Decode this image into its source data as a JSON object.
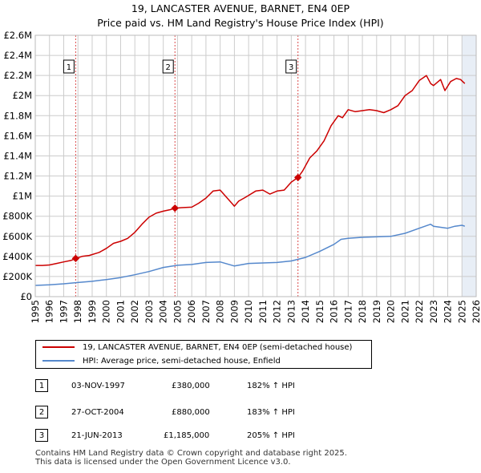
{
  "title_line1": "19, LANCASTER AVENUE, BARNET, EN4 0EP",
  "title_line2": "Price paid vs. HM Land Registry's House Price Index (HPI)",
  "colors": {
    "property": "#cc0000",
    "hpi": "#5588cc",
    "grid": "#cccccc",
    "shade": "#e8eef6"
  },
  "chart_data": {
    "type": "line",
    "title": "19, LANCASTER AVENUE, BARNET, EN4 0EP",
    "subtitle": "Price paid vs. HM Land Registry's House Price Index (HPI)",
    "xlabel": "",
    "ylabel": "",
    "xlim": [
      1995,
      2026
    ],
    "ylim": [
      0,
      2600000
    ],
    "y_ticks": [
      0,
      200000,
      400000,
      600000,
      800000,
      1000000,
      1200000,
      1400000,
      1600000,
      1800000,
      2000000,
      2200000,
      2400000,
      2600000
    ],
    "y_tick_labels": [
      "£0",
      "£200K",
      "£400K",
      "£600K",
      "£800K",
      "£1M",
      "£1.2M",
      "£1.4M",
      "£1.6M",
      "£1.8M",
      "£2M",
      "£2.2M",
      "£2.4M",
      "£2.6M"
    ],
    "x_ticks": [
      1995,
      1996,
      1997,
      1998,
      1999,
      2000,
      2001,
      2002,
      2003,
      2004,
      2005,
      2006,
      2007,
      2008,
      2009,
      2010,
      2011,
      2012,
      2013,
      2014,
      2015,
      2016,
      2017,
      2018,
      2019,
      2020,
      2021,
      2022,
      2023,
      2024,
      2025,
      2026
    ],
    "x_tick_labels": [
      "1995",
      "1996",
      "1997",
      "1998",
      "1999",
      "2000",
      "2001",
      "2002",
      "2003",
      "2004",
      "2005",
      "2006",
      "2007",
      "2008",
      "2009",
      "2010",
      "2011",
      "2012",
      "2013",
      "2014",
      "2015",
      "2016",
      "2017",
      "2018",
      "2019",
      "2020",
      "2021",
      "2022",
      "2023",
      "2024",
      "2025",
      "2026"
    ],
    "grid": true,
    "forecast_from": 2025.0,
    "series": [
      {
        "name": "19, LANCASTER AVENUE, BARNET, EN4 0EP (semi-detached house)",
        "x": [
          1995.0,
          1995.5,
          1996.0,
          1996.5,
          1997.0,
          1997.5,
          1997.84,
          1998.3,
          1998.8,
          1999.5,
          2000.0,
          2000.5,
          2001.0,
          2001.5,
          2002.0,
          2002.5,
          2003.0,
          2003.5,
          2004.0,
          2004.5,
          2004.82,
          2005.3,
          2006.0,
          2006.5,
          2007.0,
          2007.5,
          2008.0,
          2008.5,
          2009.0,
          2009.3,
          2009.8,
          2010.5,
          2011.0,
          2011.5,
          2012.0,
          2012.5,
          2013.0,
          2013.47,
          2013.8,
          2014.3,
          2014.8,
          2015.3,
          2015.8,
          2016.3,
          2016.6,
          2017.0,
          2017.5,
          2018.0,
          2018.5,
          2019.0,
          2019.5,
          2020.0,
          2020.5,
          2021.0,
          2021.5,
          2022.0,
          2022.5,
          2022.8,
          2023.0,
          2023.5,
          2023.8,
          2024.2,
          2024.6,
          2024.9,
          2025.2
        ],
        "y": [
          310000,
          310000,
          315000,
          330000,
          345000,
          360000,
          380000,
          400000,
          410000,
          440000,
          480000,
          530000,
          550000,
          580000,
          640000,
          720000,
          790000,
          830000,
          850000,
          865000,
          880000,
          885000,
          890000,
          930000,
          980000,
          1050000,
          1060000,
          980000,
          900000,
          950000,
          990000,
          1050000,
          1060000,
          1020000,
          1050000,
          1060000,
          1140000,
          1185000,
          1250000,
          1380000,
          1450000,
          1550000,
          1700000,
          1800000,
          1780000,
          1860000,
          1840000,
          1850000,
          1860000,
          1850000,
          1830000,
          1860000,
          1900000,
          2000000,
          2050000,
          2150000,
          2200000,
          2120000,
          2100000,
          2160000,
          2050000,
          2140000,
          2170000,
          2160000,
          2120000
        ]
      },
      {
        "name": "HPI: Average price, semi-detached house, Enfield",
        "x": [
          1995.0,
          1996.0,
          1997.0,
          1998.0,
          1999.0,
          2000.0,
          2001.0,
          2002.0,
          2003.0,
          2004.0,
          2005.0,
          2006.0,
          2007.0,
          2008.0,
          2009.0,
          2010.0,
          2011.0,
          2012.0,
          2013.0,
          2014.0,
          2015.0,
          2016.0,
          2016.5,
          2017.0,
          2018.0,
          2019.0,
          2020.0,
          2021.0,
          2022.0,
          2022.8,
          2023.0,
          2023.5,
          2024.0,
          2024.5,
          2025.0,
          2025.2
        ],
        "y": [
          112000,
          118000,
          128000,
          140000,
          152000,
          170000,
          190000,
          218000,
          250000,
          290000,
          312000,
          320000,
          340000,
          345000,
          305000,
          330000,
          335000,
          340000,
          355000,
          390000,
          450000,
          520000,
          570000,
          580000,
          590000,
          595000,
          600000,
          630000,
          680000,
          720000,
          700000,
          690000,
          680000,
          700000,
          710000,
          700000
        ]
      }
    ],
    "sales": [
      {
        "label": "1",
        "x": 1997.84,
        "price": 380000
      },
      {
        "label": "2",
        "x": 2004.82,
        "price": 880000
      },
      {
        "label": "3",
        "x": 2013.47,
        "price": 1185000
      }
    ]
  },
  "legend": {
    "property_label": "19, LANCASTER AVENUE, BARNET, EN4 0EP (semi-detached house)",
    "hpi_label": "HPI: Average price, semi-detached house, Enfield"
  },
  "transactions": [
    {
      "num": "1",
      "date": "03-NOV-1997",
      "price": "£380,000",
      "hpi": "182% ↑ HPI"
    },
    {
      "num": "2",
      "date": "27-OCT-2004",
      "price": "£880,000",
      "hpi": "183% ↑ HPI"
    },
    {
      "num": "3",
      "date": "21-JUN-2013",
      "price": "£1,185,000",
      "hpi": "205% ↑ HPI"
    }
  ],
  "footer": {
    "line1": "Contains HM Land Registry data © Crown copyright and database right 2025.",
    "line2": "This data is licensed under the Open Government Licence v3.0."
  }
}
